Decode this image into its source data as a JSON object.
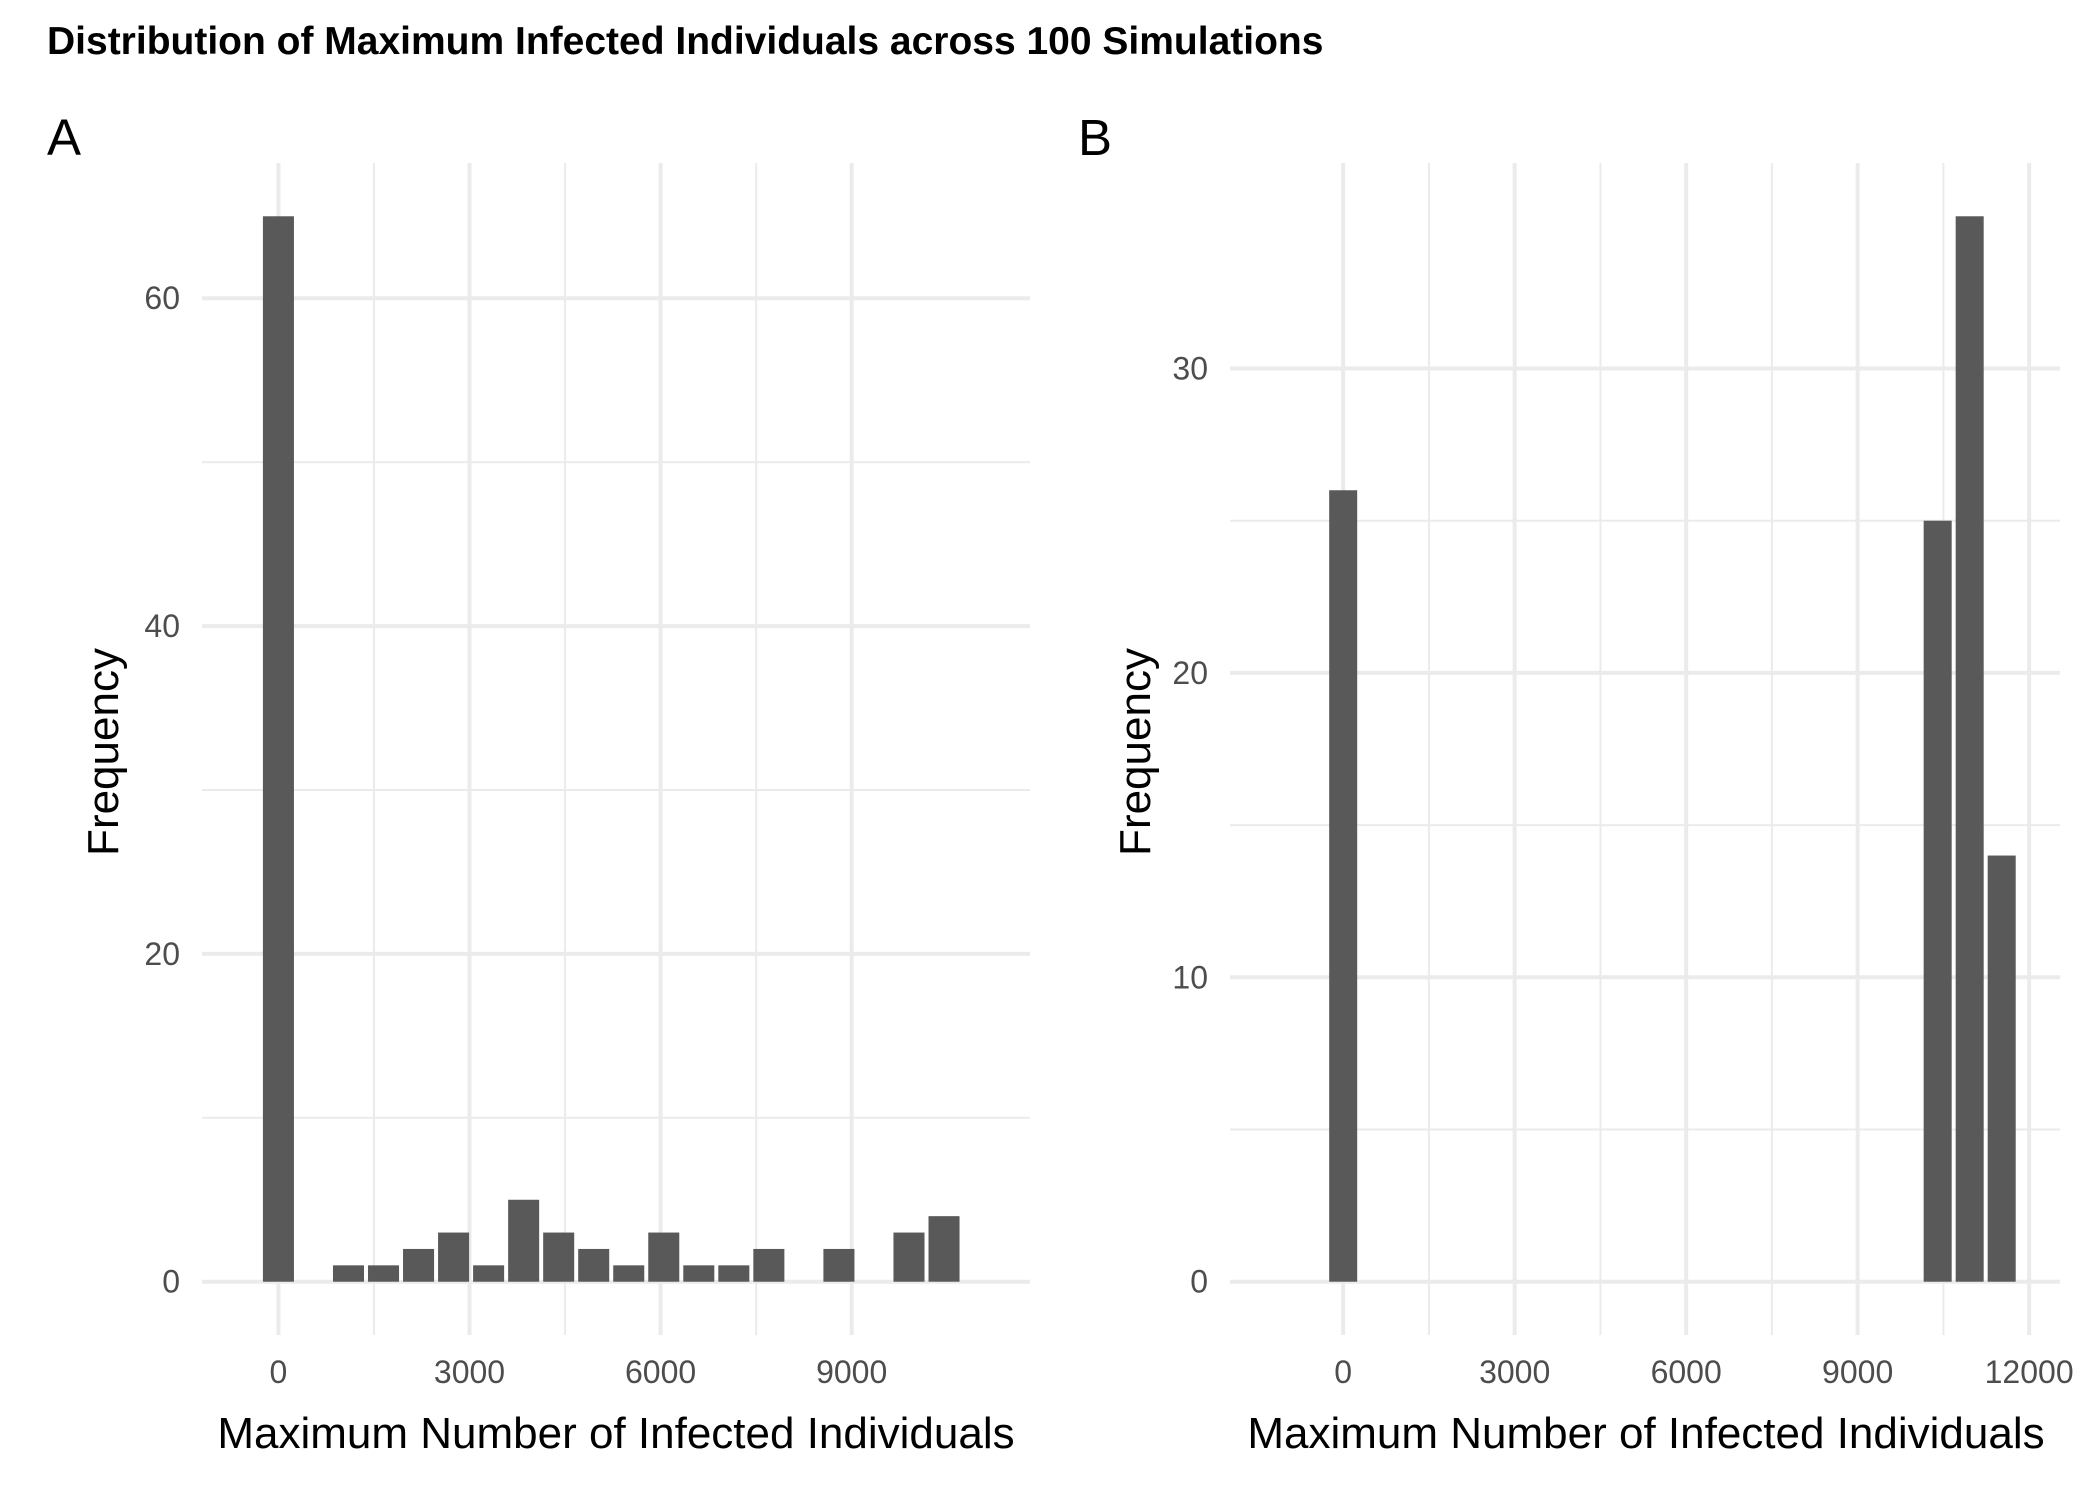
{
  "figure": {
    "title": "Distribution of Maximum Infected Individuals across 100 Simulations",
    "bar_color": "#595959",
    "grid_color": "#ebebeb",
    "background": "#ffffff"
  },
  "chart_data": [
    {
      "type": "bar",
      "panel": "A",
      "xlabel": "Maximum Number of Infected Individuals",
      "ylabel": "Frequency",
      "xlim": [
        -1200,
        11800
      ],
      "ylim": [
        -3.25,
        68.25
      ],
      "x_ticks": [
        0,
        3000,
        6000,
        9000
      ],
      "y_ticks": [
        0,
        20,
        40,
        60
      ],
      "grid": true,
      "bin_width": 550,
      "x": [
        0,
        1100,
        1650,
        2200,
        2750,
        3300,
        3850,
        4400,
        4950,
        5500,
        6050,
        6600,
        7150,
        7700,
        8800,
        9900,
        10450
      ],
      "values": [
        65,
        1,
        1,
        2,
        3,
        1,
        5,
        3,
        2,
        1,
        3,
        1,
        1,
        2,
        2,
        3,
        4
      ]
    },
    {
      "type": "bar",
      "panel": "B",
      "xlabel": "Maximum Number of Infected Individuals",
      "ylabel": "Frequency",
      "xlim": [
        -1980,
        12540
      ],
      "ylim": [
        -1.75,
        36.75
      ],
      "x_ticks": [
        0,
        3000,
        6000,
        9000,
        12000
      ],
      "y_ticks": [
        0,
        10,
        20,
        30
      ],
      "grid": true,
      "bin_width": 560,
      "x": [
        0,
        10400,
        10960,
        11520
      ],
      "values": [
        26,
        25,
        35,
        14
      ]
    }
  ]
}
